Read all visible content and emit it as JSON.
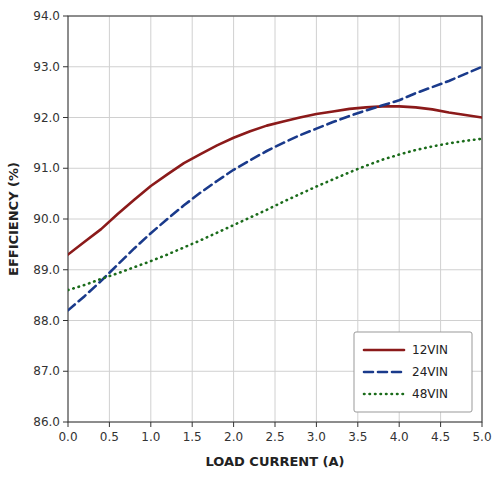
{
  "chart_data": {
    "type": "line",
    "x_label": "LOAD CURRENT (A)",
    "y_label": "EFFICIENCY (%)",
    "x": [
      0.0,
      0.2,
      0.4,
      0.6,
      0.8,
      1.0,
      1.2,
      1.4,
      1.6,
      1.8,
      2.0,
      2.2,
      2.4,
      2.6,
      2.8,
      3.0,
      3.2,
      3.4,
      3.6,
      3.8,
      4.0,
      4.2,
      4.4,
      4.6,
      4.8,
      5.0
    ],
    "xlim": [
      0.0,
      5.0
    ],
    "ylim": [
      86.0,
      94.0
    ],
    "xticks": [
      {
        "value": 0.0,
        "label": "0.0"
      },
      0.5,
      {
        "value": 1.0,
        "label": "1.0"
      },
      1.5,
      {
        "value": 2.0,
        "label": "2.0"
      },
      2.5,
      {
        "value": 3.0,
        "label": "3.0"
      },
      3.5,
      {
        "value": 4.0,
        "label": "4.0"
      },
      4.5,
      {
        "value": 5.0,
        "label": "5.0"
      }
    ],
    "yticks": [
      {
        "value": 86.0,
        "label": "86.0"
      },
      {
        "value": 87.0,
        "label": "87.0"
      },
      {
        "value": 88.0,
        "label": "88.0"
      },
      {
        "value": 89.0,
        "label": "89.0"
      },
      {
        "value": 90.0,
        "label": "90.0"
      },
      {
        "value": 91.0,
        "label": "91.0"
      },
      {
        "value": 92.0,
        "label": "92.0"
      },
      {
        "value": 93.0,
        "label": "93.0"
      },
      {
        "value": 94.0,
        "label": "94.0"
      }
    ],
    "grid": true,
    "legend": "lower right",
    "series": [
      {
        "name": "12VIN",
        "color": "#8B1A1A",
        "line_style": "solid",
        "values": [
          89.3,
          89.55,
          89.8,
          90.1,
          90.38,
          90.65,
          90.88,
          91.1,
          91.28,
          91.45,
          91.6,
          91.73,
          91.84,
          91.92,
          92.0,
          92.07,
          92.12,
          92.17,
          92.2,
          92.22,
          92.22,
          92.2,
          92.16,
          92.1,
          92.05,
          92.0
        ]
      },
      {
        "name": "24VIN",
        "color": "#1A3A8B",
        "line_style": "dashed",
        "values": [
          88.2,
          88.48,
          88.78,
          89.1,
          89.42,
          89.72,
          90.0,
          90.27,
          90.52,
          90.75,
          90.97,
          91.16,
          91.34,
          91.5,
          91.65,
          91.78,
          91.91,
          92.03,
          92.14,
          92.24,
          92.34,
          92.48,
          92.6,
          92.72,
          92.86,
          93.0
        ]
      },
      {
        "name": "48VIN",
        "color": "#1A6B1A",
        "line_style": "dotted",
        "values": [
          88.6,
          88.7,
          88.82,
          88.93,
          89.05,
          89.17,
          89.3,
          89.44,
          89.58,
          89.73,
          89.88,
          90.03,
          90.18,
          90.34,
          90.49,
          90.64,
          90.78,
          90.92,
          91.05,
          91.17,
          91.27,
          91.36,
          91.43,
          91.49,
          91.54,
          91.58
        ]
      }
    ]
  }
}
